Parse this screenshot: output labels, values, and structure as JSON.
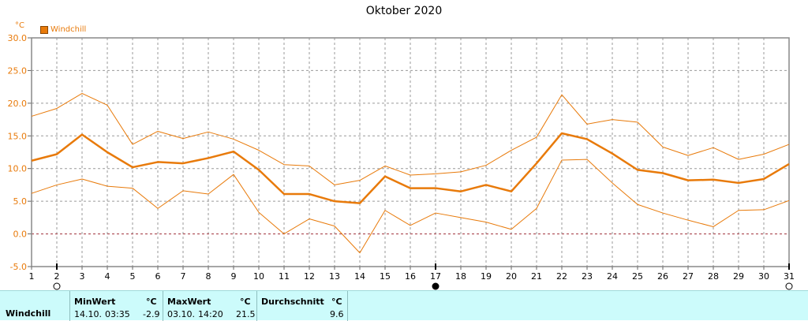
{
  "chart_data": {
    "type": "line",
    "title": "Oktober 2020",
    "unit": "°C",
    "x": [
      1,
      2,
      3,
      4,
      5,
      6,
      7,
      8,
      9,
      10,
      11,
      12,
      13,
      14,
      15,
      16,
      17,
      18,
      19,
      20,
      21,
      22,
      23,
      24,
      25,
      26,
      27,
      28,
      29,
      30,
      31
    ],
    "ylim": [
      -5.0,
      30.0
    ],
    "yticks": [
      "-5.0",
      "0.0",
      "5.0",
      "10.0",
      "15.0",
      "20.0",
      "25.0",
      "30.0"
    ],
    "grid": true,
    "legend": "top-left",
    "series": [
      {
        "name": "Windchill",
        "role": "mean",
        "color": "#e87a0a",
        "values": [
          11.2,
          12.2,
          15.2,
          12.5,
          10.2,
          11.0,
          10.8,
          11.6,
          12.6,
          9.8,
          6.1,
          6.1,
          5.0,
          4.7,
          8.8,
          7.0,
          7.0,
          6.5,
          7.5,
          6.5,
          10.8,
          15.4,
          14.5,
          12.3,
          9.8,
          9.3,
          8.2,
          8.3,
          7.8,
          8.4,
          10.7
        ]
      },
      {
        "role": "max",
        "color": "#e87a0a",
        "values": [
          18.0,
          19.2,
          21.5,
          19.7,
          13.7,
          15.7,
          14.6,
          15.6,
          14.5,
          12.8,
          10.6,
          10.4,
          7.5,
          8.2,
          10.4,
          9.0,
          9.2,
          9.5,
          10.5,
          12.8,
          14.8,
          21.3,
          16.8,
          17.5,
          17.1,
          13.3,
          12.0,
          13.2,
          11.4,
          12.2,
          13.7
        ]
      },
      {
        "role": "min",
        "color": "#e87a0a",
        "values": [
          6.2,
          7.5,
          8.4,
          7.3,
          7.0,
          3.9,
          6.6,
          6.1,
          9.1,
          3.3,
          0.0,
          2.3,
          1.2,
          -2.9,
          3.6,
          1.3,
          3.2,
          2.5,
          1.8,
          0.7,
          3.9,
          11.3,
          11.4,
          7.8,
          4.5,
          3.2,
          2.1,
          1.1,
          3.6,
          3.7,
          5.1
        ]
      }
    ],
    "moon_markers": [
      {
        "day": 2,
        "phase": "full-moon"
      },
      {
        "day": 17,
        "phase": "new-moon"
      },
      {
        "day": 31,
        "phase": "full-moon"
      }
    ]
  },
  "summary": {
    "row_label": "Windchill",
    "min": {
      "header": "MinWert",
      "unit": "°C",
      "date": "14.10.",
      "time": "03:35",
      "value": "-2.9"
    },
    "max": {
      "header": "MaxWert",
      "unit": "°C",
      "date": "03.10.",
      "time": "14:20",
      "value": "21.5"
    },
    "avg": {
      "header": "Durchschnitt",
      "unit": "°C",
      "value": "9.6"
    }
  }
}
